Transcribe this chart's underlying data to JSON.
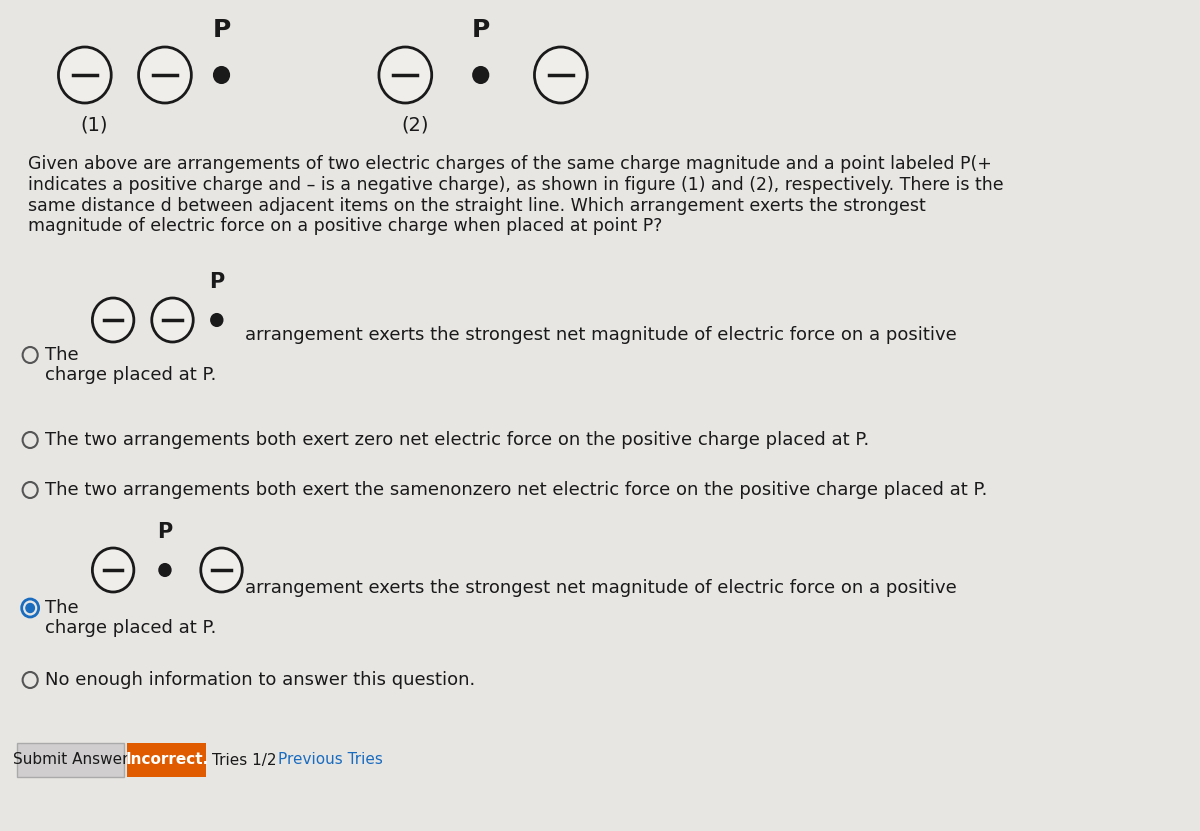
{
  "bg_color": "#e8e6e3",
  "title_fig1_label": "(1)",
  "title_fig2_label": "(2)",
  "question_text": "Given above are arrangements of two electric charges of the same charge magnitude and a point labeled P(+\nindicates a positive charge and – is a negative charge), as shown in figure (1) and (2), respectively. There is the\nsame distance d between adjacent items on the straight line. Which arrangement exerts the strongest\nmagnitude of electric force on a positive charge when placed at point P?",
  "option1_text": "arrangement exerts the strongest net magnitude of electric force on a positive\ncharge placed at P.",
  "option2_text": "The two arrangements both exert zero net electric force on the positive charge placed at P.",
  "option3_text": "The two arrangements both exert the same​nonzero net electric force on the positive charge placed at P.",
  "option4_text": "arrangement exerts the strongest net magnitude of electric force on a positive\ncharge placed at P.",
  "option5_text": "No enough information to answer this question.",
  "submit_btn_text": "Submit Answer",
  "incorrect_text": "Incorrect.",
  "tries_text": "Tries 1/2",
  "prev_text": "Previous Tries",
  "text_color": "#1a1a1a",
  "circle_edge_color": "#1a1a1a",
  "circle_face_color": "#f0eeeb",
  "dot_color": "#1a1a1a",
  "radio_empty_color": "#555555",
  "radio_selected_color": "#1a6cbf",
  "submit_btn_color": "#d0cece",
  "incorrect_bg_color": "#e05a00",
  "incorrect_text_color": "#ffffff",
  "link_color": "#1a6cbf"
}
